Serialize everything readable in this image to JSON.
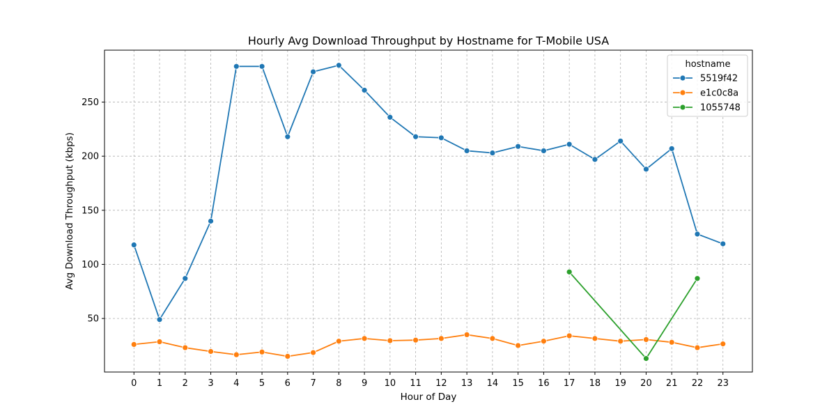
{
  "chart_data": {
    "type": "line",
    "title": "Hourly Avg Download Throughput by Hostname for T-Mobile USA",
    "xlabel": "Hour of Day",
    "ylabel": "Avg Download Throughput (kbps)",
    "x": [
      0,
      1,
      2,
      3,
      4,
      5,
      6,
      7,
      8,
      9,
      10,
      11,
      12,
      13,
      14,
      15,
      16,
      17,
      18,
      19,
      20,
      21,
      22,
      23
    ],
    "xlim": [
      -1.15,
      24.15
    ],
    "ylim": [
      0.5,
      298
    ],
    "yticks": [
      50,
      100,
      150,
      200,
      250
    ],
    "grid": true,
    "legend": {
      "title": "hostname",
      "position": "top-right"
    },
    "series": [
      {
        "name": "5519f42",
        "color": "#1f77b4",
        "x": [
          0,
          1,
          2,
          3,
          4,
          5,
          6,
          7,
          8,
          9,
          10,
          11,
          12,
          13,
          14,
          15,
          16,
          17,
          18,
          19,
          20,
          21,
          22,
          23
        ],
        "values": [
          118,
          49,
          87,
          140,
          283,
          283,
          218,
          278,
          284,
          261,
          236,
          218,
          217,
          205,
          203,
          209,
          205,
          211,
          197,
          214,
          188,
          207,
          128,
          119
        ]
      },
      {
        "name": "e1c0c8a",
        "color": "#ff7f0e",
        "x": [
          0,
          1,
          2,
          3,
          4,
          5,
          6,
          7,
          8,
          9,
          10,
          11,
          12,
          13,
          14,
          15,
          16,
          17,
          18,
          19,
          20,
          21,
          22,
          23
        ],
        "values": [
          26,
          28.5,
          23,
          19.5,
          16.5,
          19,
          15,
          18.5,
          29,
          31.5,
          29.5,
          30,
          31.5,
          35,
          31.5,
          25,
          29,
          34,
          31.5,
          29,
          30.5,
          28,
          23,
          26.5
        ]
      },
      {
        "name": "1055748",
        "color": "#2ca02c",
        "x": [
          17,
          20,
          22
        ],
        "values": [
          93,
          13,
          87
        ]
      }
    ]
  }
}
